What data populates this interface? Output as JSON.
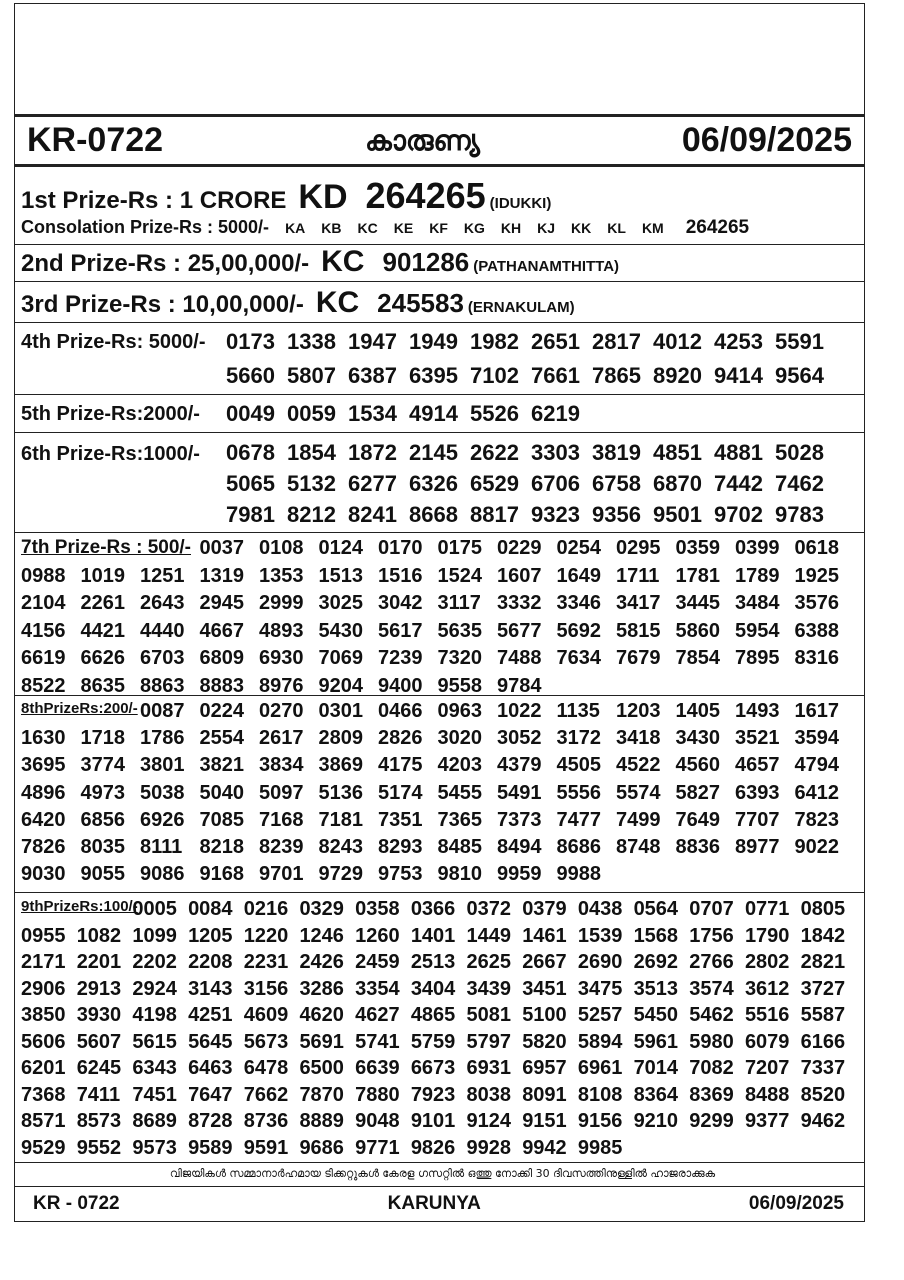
{
  "header": {
    "code": "KR-0722",
    "name": "കാരുണ്യ",
    "date": "06/09/2025"
  },
  "first_prize": {
    "label": "1st Prize-Rs : 1 CRORE",
    "series": "KD",
    "number": "264265",
    "place": "(IDUKKI)"
  },
  "consolation_prize": {
    "label": "Consolation Prize-Rs : 5000/-",
    "series": [
      "KA",
      "KB",
      "KC",
      "KE",
      "KF",
      "KG",
      "KH",
      "KJ",
      "KK",
      "KL",
      "KM"
    ],
    "number": "264265"
  },
  "second_prize": {
    "label": "2nd Prize-Rs : 25,00,000/-",
    "series": "KC",
    "number": "901286",
    "place": "(PATHANAMTHITTA)"
  },
  "third_prize": {
    "label": "3rd Prize-Rs : 10,00,000/-",
    "series": "KC",
    "number": "245583",
    "place": "(ERNAKULAM)"
  },
  "prizes": [
    {
      "label": "4th Prize-Rs: 5000/-",
      "numbers": [
        "0173",
        "1338",
        "1947",
        "1949",
        "1982",
        "2651",
        "2817",
        "4012",
        "4253",
        "5591",
        "5660",
        "5807",
        "6387",
        "6395",
        "7102",
        "7661",
        "7865",
        "8920",
        "9414",
        "9564"
      ]
    },
    {
      "label": "5th Prize-Rs:2000/-",
      "numbers": [
        "0049",
        "0059",
        "1534",
        "4914",
        "5526",
        "6219"
      ]
    },
    {
      "label": "6th Prize-Rs:1000/-",
      "numbers": [
        "0678",
        "1854",
        "1872",
        "2145",
        "2622",
        "3303",
        "3819",
        "4851",
        "4881",
        "5028",
        "5065",
        "5132",
        "6277",
        "6326",
        "6529",
        "6706",
        "6758",
        "6870",
        "7442",
        "7462",
        "7981",
        "8212",
        "8241",
        "8668",
        "8817",
        "9323",
        "9356",
        "9501",
        "9702",
        "9783"
      ]
    },
    {
      "label": "7th Prize-Rs : 500/-",
      "numbers": [
        "0037",
        "0108",
        "0124",
        "0170",
        "0175",
        "0229",
        "0254",
        "0295",
        "0359",
        "0399",
        "0618",
        "0988",
        "1019",
        "1251",
        "1319",
        "1353",
        "1513",
        "1516",
        "1524",
        "1607",
        "1649",
        "1711",
        "1781",
        "1789",
        "1925",
        "2104",
        "2261",
        "2643",
        "2945",
        "2999",
        "3025",
        "3042",
        "3117",
        "3332",
        "3346",
        "3417",
        "3445",
        "3484",
        "3576",
        "4156",
        "4421",
        "4440",
        "4667",
        "4893",
        "5430",
        "5617",
        "5635",
        "5677",
        "5692",
        "5815",
        "5860",
        "5954",
        "6388",
        "6619",
        "6626",
        "6703",
        "6809",
        "6930",
        "7069",
        "7239",
        "7320",
        "7488",
        "7634",
        "7679",
        "7854",
        "7895",
        "8316",
        "8522",
        "8635",
        "8863",
        "8883",
        "8976",
        "9204",
        "9400",
        "9558",
        "9784"
      ]
    },
    {
      "label": "8thPrizeRs:200/-",
      "numbers": [
        "0087",
        "0224",
        "0270",
        "0301",
        "0466",
        "0963",
        "1022",
        "1135",
        "1203",
        "1405",
        "1493",
        "1617",
        "1630",
        "1718",
        "1786",
        "2554",
        "2617",
        "2809",
        "2826",
        "3020",
        "3052",
        "3172",
        "3418",
        "3430",
        "3521",
        "3594",
        "3695",
        "3774",
        "3801",
        "3821",
        "3834",
        "3869",
        "4175",
        "4203",
        "4379",
        "4505",
        "4522",
        "4560",
        "4657",
        "4794",
        "4896",
        "4973",
        "5038",
        "5040",
        "5097",
        "5136",
        "5174",
        "5455",
        "5491",
        "5556",
        "5574",
        "5827",
        "6393",
        "6412",
        "6420",
        "6856",
        "6926",
        "7085",
        "7168",
        "7181",
        "7351",
        "7365",
        "7373",
        "7477",
        "7499",
        "7649",
        "7707",
        "7823",
        "7826",
        "8035",
        "8111",
        "8218",
        "8239",
        "8243",
        "8293",
        "8485",
        "8494",
        "8686",
        "8748",
        "8836",
        "8977",
        "9022",
        "9030",
        "9055",
        "9086",
        "9168",
        "9701",
        "9729",
        "9753",
        "9810",
        "9959",
        "9988"
      ]
    },
    {
      "label": "9thPrizeRs:100/-",
      "numbers": [
        "0005",
        "0084",
        "0216",
        "0329",
        "0358",
        "0366",
        "0372",
        "0379",
        "0438",
        "0564",
        "0707",
        "0771",
        "0805",
        "0955",
        "1082",
        "1099",
        "1205",
        "1220",
        "1246",
        "1260",
        "1401",
        "1449",
        "1461",
        "1539",
        "1568",
        "1756",
        "1790",
        "1842",
        "2171",
        "2201",
        "2202",
        "2208",
        "2231",
        "2426",
        "2459",
        "2513",
        "2625",
        "2667",
        "2690",
        "2692",
        "2766",
        "2802",
        "2821",
        "2906",
        "2913",
        "2924",
        "3143",
        "3156",
        "3286",
        "3354",
        "3404",
        "3439",
        "3451",
        "3475",
        "3513",
        "3574",
        "3612",
        "3727",
        "3850",
        "3930",
        "4198",
        "4251",
        "4609",
        "4620",
        "4627",
        "4865",
        "5081",
        "5100",
        "5257",
        "5450",
        "5462",
        "5516",
        "5587",
        "5606",
        "5607",
        "5615",
        "5645",
        "5673",
        "5691",
        "5741",
        "5759",
        "5797",
        "5820",
        "5894",
        "5961",
        "5980",
        "6079",
        "6166",
        "6201",
        "6245",
        "6343",
        "6463",
        "6478",
        "6500",
        "6639",
        "6673",
        "6931",
        "6957",
        "6961",
        "7014",
        "7082",
        "7207",
        "7337",
        "7368",
        "7411",
        "7451",
        "7647",
        "7662",
        "7870",
        "7880",
        "7923",
        "8038",
        "8091",
        "8108",
        "8364",
        "8369",
        "8488",
        "8520",
        "8571",
        "8573",
        "8689",
        "8728",
        "8736",
        "8889",
        "9048",
        "9101",
        "9124",
        "9151",
        "9156",
        "9210",
        "9299",
        "9377",
        "9462",
        "9529",
        "9552",
        "9573",
        "9589",
        "9591",
        "9686",
        "9771",
        "9826",
        "9928",
        "9942",
        "9985"
      ]
    }
  ],
  "note": "വിജയികൾ സമ്മാനാർഹമായ ടിക്കറ്റുകൾ കേരള ഗസറ്റിൽ ഒത്തു നോക്കി 30 ദിവസത്തിനുള്ളിൽ ഹാജരാക്കുക",
  "footer": {
    "code": "KR - 0722",
    "name": "KARUNYA",
    "date": "06/09/2025"
  }
}
